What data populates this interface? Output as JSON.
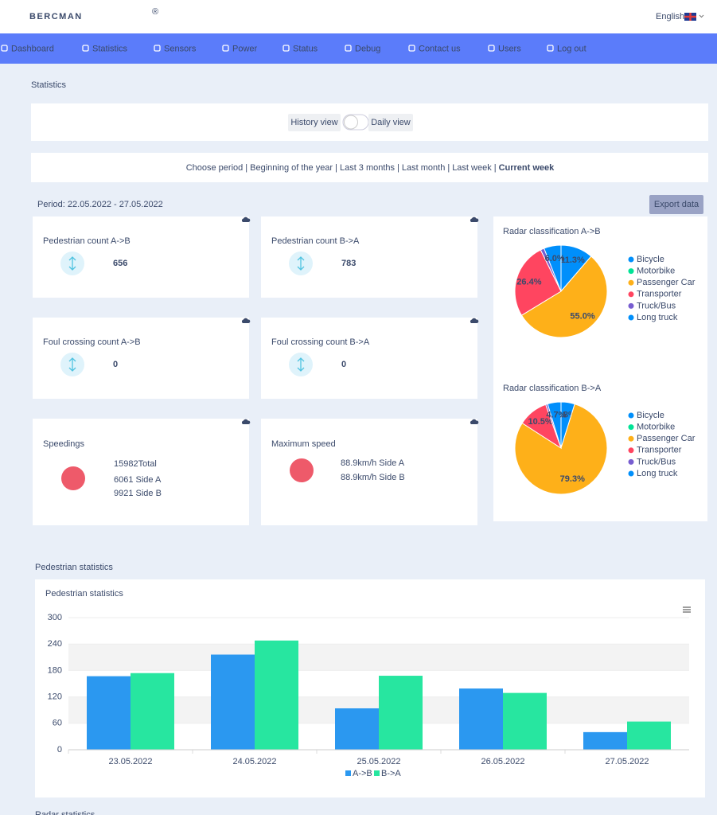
{
  "header": {
    "logo": "BERCMAN",
    "logo_mark": "®",
    "language": "English"
  },
  "nav": [
    "Dashboard",
    "Statistics",
    "Sensors",
    "Power",
    "Status",
    "Debug",
    "Contact us",
    "Users",
    "Log out"
  ],
  "page_title": "Statistics",
  "view_toggle": {
    "left": "History view",
    "right": "Daily view"
  },
  "period_selector": {
    "label": "Choose period",
    "separator": "|",
    "options": [
      "Beginning of the year",
      "Last 3 months",
      "Last month",
      "Last week",
      "Current week"
    ],
    "active": 4
  },
  "period": "Period: 22.05.2022 - 27.05.2022",
  "export_button": "Export data",
  "cards": [
    {
      "title": "Pedestrian count A->B",
      "value": 656
    },
    {
      "title": "Pedestrian count B->A",
      "value": 783
    },
    {
      "title": "Foul crossing count A->B",
      "value": 0
    },
    {
      "title": "Foul crossing count B->A",
      "value": 0
    }
  ],
  "speedings": {
    "title": "Speedings",
    "lines": [
      "15982Total",
      "6061 Side A",
      "9921 Side B"
    ]
  },
  "max_speed": {
    "title": "Maximum speed",
    "lines": [
      "88.9km/h Side A",
      "88.9km/h Side B"
    ]
  },
  "section_titles": [
    "Pedestrian statistics",
    "Radar statistics"
  ],
  "chart_data": [
    {
      "type": "pie",
      "title": "Radar classification A->B",
      "categories": [
        "Bicycle",
        "Motorbike",
        "Passenger Car",
        "Transporter",
        "Truck/Bus",
        "Long truck"
      ],
      "colors": [
        "#008ffb",
        "#00e396",
        "#feb019",
        "#ff4560",
        "#775dd0",
        "#008ffb"
      ],
      "values": [
        11.3,
        0,
        55.0,
        26.4,
        1.3,
        6.0
      ],
      "value_labels": [
        "11.3%",
        null,
        "55.0%",
        "26.4%",
        null,
        "6.0%"
      ]
    },
    {
      "type": "pie",
      "title": "Radar classification B->A",
      "categories": [
        "Bicycle",
        "Motorbike",
        "Passenger Car",
        "Transporter",
        "Truck/Bus",
        "Long truck"
      ],
      "colors": [
        "#008ffb",
        "#00e396",
        "#feb019",
        "#ff4560",
        "#775dd0",
        "#008ffb"
      ],
      "values": [
        4.8,
        0,
        79.3,
        10.5,
        0.7,
        4.7
      ],
      "value_labels": [
        "4.8%",
        null,
        "79.3%",
        "10.5%",
        null,
        "4.7%"
      ]
    },
    {
      "type": "bar",
      "title": "Pedestrian statistics",
      "categories": [
        "23.05.2022",
        "24.05.2022",
        "25.05.2022",
        "26.05.2022",
        "27.05.2022"
      ],
      "series": [
        {
          "name": "A->B",
          "color": "#2b98f0",
          "values": [
            167,
            216,
            94,
            139,
            40
          ]
        },
        {
          "name": "B->A",
          "color": "#27e6a0",
          "values": [
            174,
            248,
            168,
            129,
            64
          ]
        }
      ],
      "ylim": [
        0,
        300
      ],
      "yticks": [
        0,
        60,
        120,
        180,
        240,
        300
      ],
      "grid": true,
      "legend": "bottom"
    }
  ]
}
